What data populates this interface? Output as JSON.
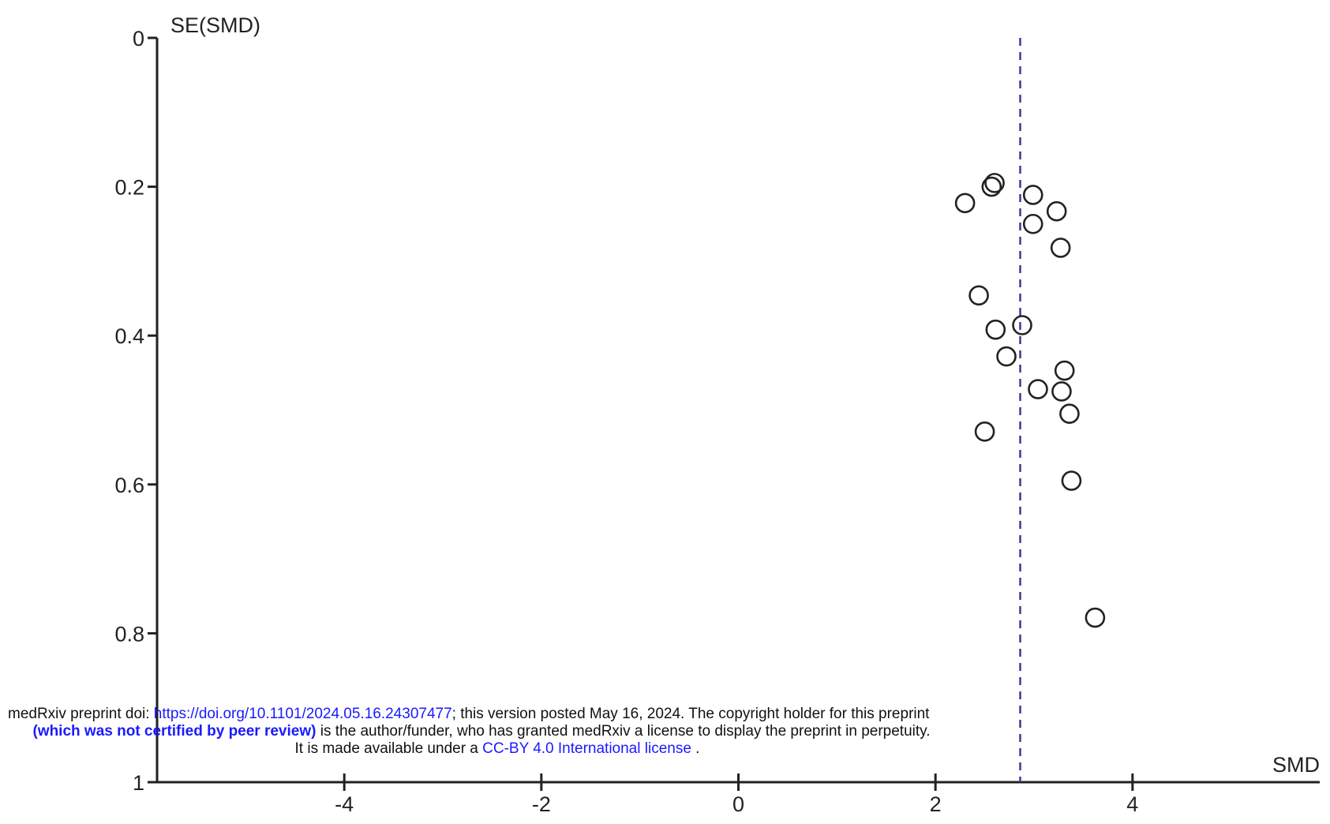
{
  "chart_data": {
    "type": "scatter",
    "title": "",
    "xlabel": "SMD",
    "ylabel": "SE(SMD)",
    "xlim": [
      -5.9,
      5.9
    ],
    "ylim": [
      0,
      1
    ],
    "y_inverted": true,
    "x_ticks": [
      "-4",
      "-2",
      "0",
      "2",
      "4"
    ],
    "x_tick_values": [
      -4,
      -2,
      0,
      2,
      4
    ],
    "y_ticks": [
      "0",
      "0.2",
      "0.4",
      "0.6",
      "0.8",
      "1"
    ],
    "y_tick_values": [
      0,
      0.2,
      0.4,
      0.6,
      0.8,
      1
    ],
    "reference_line": {
      "x": 2.86,
      "style": "dashed",
      "color": "#3a3a9a"
    },
    "marker": "open-circle",
    "points": [
      {
        "x": 2.6,
        "y": 0.195
      },
      {
        "x": 2.57,
        "y": 0.2
      },
      {
        "x": 2.3,
        "y": 0.222
      },
      {
        "x": 2.99,
        "y": 0.211
      },
      {
        "x": 3.23,
        "y": 0.233
      },
      {
        "x": 2.99,
        "y": 0.25
      },
      {
        "x": 3.27,
        "y": 0.282
      },
      {
        "x": 2.44,
        "y": 0.346
      },
      {
        "x": 2.88,
        "y": 0.386
      },
      {
        "x": 2.61,
        "y": 0.392
      },
      {
        "x": 2.72,
        "y": 0.428
      },
      {
        "x": 3.31,
        "y": 0.447
      },
      {
        "x": 3.04,
        "y": 0.472
      },
      {
        "x": 3.28,
        "y": 0.475
      },
      {
        "x": 3.36,
        "y": 0.505
      },
      {
        "x": 2.5,
        "y": 0.529
      },
      {
        "x": 3.38,
        "y": 0.595
      },
      {
        "x": 3.62,
        "y": 0.779
      }
    ]
  },
  "watermark": {
    "line1_prefix": "medRxiv preprint doi: ",
    "doi_link": "https://doi.org/10.1101/2024.05.16.24307477",
    "line1_suffix": "; this version posted May 16, 2024. The copyright holder for this preprint",
    "line2_bold": "(which was not certified by peer review)",
    "line2_rest": " is the author/funder, who has granted medRxiv a license to display the preprint in perpetuity.",
    "line3_prefix": "It is made available under a ",
    "license_link": "CC-BY 4.0 International license",
    "line3_suffix": " ."
  }
}
